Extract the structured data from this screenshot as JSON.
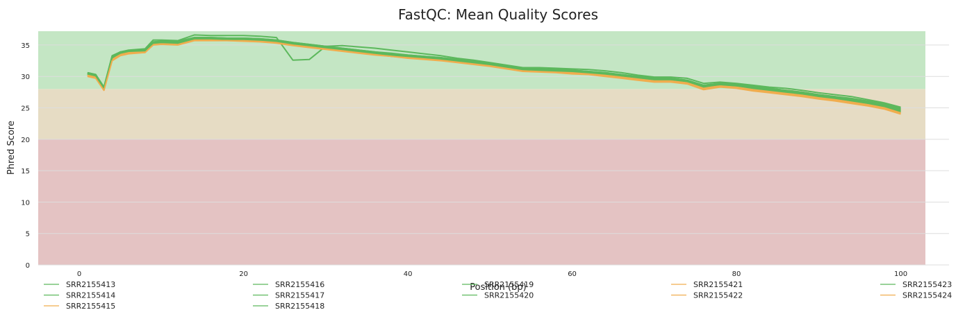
{
  "chart_data": {
    "type": "line",
    "title": "FastQC: Mean Quality Scores",
    "xlabel": "Position (bp)",
    "ylabel": "Phred Score",
    "xlim": [
      -5,
      103
    ],
    "ylim": [
      0,
      37.2
    ],
    "xticks": [
      0,
      20,
      40,
      60,
      80,
      100
    ],
    "yticks": [
      0,
      5,
      10,
      15,
      20,
      25,
      30,
      35
    ],
    "grid": "horizontal",
    "legend_position": "bottom",
    "bands": [
      {
        "from": 0,
        "to": 20,
        "color": "#e4c3c3"
      },
      {
        "from": 20,
        "to": 28,
        "color": "#e6dcc4"
      },
      {
        "from": 28,
        "to": 37.2,
        "color": "#c4e6c4"
      }
    ],
    "x": [
      1,
      2,
      3,
      4,
      5,
      6,
      8,
      9,
      10,
      12,
      14,
      16,
      18,
      20,
      22,
      24,
      26,
      28,
      30,
      32,
      34,
      36,
      38,
      40,
      42,
      44,
      46,
      48,
      50,
      52,
      54,
      56,
      58,
      60,
      62,
      64,
      66,
      68,
      70,
      72,
      74,
      76,
      78,
      80,
      82,
      84,
      86,
      88,
      90,
      92,
      94,
      96,
      98,
      100
    ],
    "series": [
      {
        "name": "SRR2155413",
        "color": "#5cb85c",
        "values": [
          30.6,
          30.3,
          28.3,
          33.3,
          33.9,
          34.2,
          34.4,
          35.8,
          35.8,
          35.7,
          36.6,
          36.5,
          36.5,
          36.5,
          36.4,
          36.2,
          32.6,
          32.7,
          34.8,
          34.9,
          34.7,
          34.5,
          34.2,
          33.9,
          33.6,
          33.3,
          32.9,
          32.6,
          32.2,
          31.8,
          31.4,
          31.4,
          31.3,
          31.2,
          31.1,
          30.9,
          30.6,
          30.2,
          29.9,
          29.9,
          29.7,
          28.9,
          29.1,
          28.9,
          28.6,
          28.3,
          28.1,
          27.8,
          27.4,
          27.1,
          26.8,
          26.3,
          25.8,
          25.1
        ]
      },
      {
        "name": "SRR2155414",
        "color": "#5cb85c",
        "values": [
          30.6,
          30.3,
          28.2,
          33.2,
          33.9,
          34.1,
          34.2,
          35.5,
          35.6,
          35.6,
          36.2,
          36.2,
          36.1,
          36.1,
          36.0,
          35.8,
          35.4,
          35.1,
          34.8,
          34.5,
          34.2,
          33.9,
          33.7,
          33.4,
          33.2,
          33.0,
          32.7,
          32.4,
          32.1,
          31.7,
          31.3,
          31.2,
          31.1,
          31.0,
          30.8,
          30.6,
          30.3,
          30.0,
          29.7,
          29.7,
          29.4,
          28.6,
          28.9,
          28.7,
          28.4,
          28.1,
          27.8,
          27.5,
          27.1,
          26.8,
          26.5,
          26.1,
          25.6,
          24.9
        ]
      },
      {
        "name": "SRR2155415",
        "color": "#f0ad4e",
        "values": [
          30.2,
          29.9,
          27.9,
          32.7,
          33.5,
          33.8,
          34.0,
          35.2,
          35.3,
          35.2,
          35.9,
          35.9,
          35.9,
          35.8,
          35.7,
          35.5,
          35.1,
          34.8,
          34.5,
          34.2,
          33.9,
          33.6,
          33.4,
          33.1,
          32.9,
          32.7,
          32.4,
          32.1,
          31.8,
          31.4,
          31.0,
          30.9,
          30.8,
          30.6,
          30.5,
          30.2,
          29.9,
          29.6,
          29.3,
          29.3,
          29.0,
          28.1,
          28.5,
          28.3,
          27.9,
          27.6,
          27.3,
          27.0,
          26.6,
          26.3,
          25.9,
          25.5,
          25.0,
          24.2
        ]
      },
      {
        "name": "SRR2155416",
        "color": "#5cb85c",
        "values": [
          30.5,
          30.2,
          28.1,
          33.1,
          33.8,
          34.0,
          34.1,
          35.3,
          35.4,
          35.3,
          36.0,
          36.0,
          36.0,
          35.9,
          35.8,
          35.6,
          35.2,
          34.9,
          34.6,
          34.3,
          34.0,
          33.7,
          33.4,
          33.2,
          33.0,
          32.8,
          32.5,
          32.2,
          31.9,
          31.5,
          31.1,
          31.0,
          30.9,
          30.7,
          30.6,
          30.3,
          30.0,
          29.7,
          29.4,
          29.4,
          29.1,
          28.3,
          28.6,
          28.4,
          28.1,
          27.8,
          27.5,
          27.2,
          26.8,
          26.5,
          26.1,
          25.7,
          25.2,
          24.5
        ]
      },
      {
        "name": "SRR2155417",
        "color": "#5cb85c",
        "values": [
          30.4,
          30.1,
          28.1,
          33.0,
          33.7,
          33.9,
          34.1,
          35.3,
          35.3,
          35.3,
          35.9,
          35.9,
          35.9,
          35.8,
          35.7,
          35.5,
          35.1,
          34.8,
          34.5,
          34.2,
          33.9,
          33.6,
          33.3,
          33.1,
          32.9,
          32.7,
          32.4,
          32.1,
          31.8,
          31.4,
          31.0,
          30.9,
          30.8,
          30.6,
          30.5,
          30.2,
          29.9,
          29.6,
          29.3,
          29.3,
          29.0,
          28.2,
          28.5,
          28.3,
          28.0,
          27.7,
          27.4,
          27.1,
          26.7,
          26.4,
          26.0,
          25.6,
          25.1,
          24.4
        ]
      },
      {
        "name": "SRR2155418",
        "color": "#5cb85c",
        "values": [
          30.3,
          30.0,
          28.0,
          32.9,
          33.6,
          33.9,
          34.0,
          35.2,
          35.2,
          35.2,
          35.8,
          35.8,
          35.8,
          35.7,
          35.6,
          35.4,
          35.0,
          34.7,
          34.4,
          34.1,
          33.8,
          33.5,
          33.2,
          33.0,
          32.8,
          32.6,
          32.3,
          32.0,
          31.7,
          31.3,
          30.9,
          30.8,
          30.7,
          30.5,
          30.4,
          30.1,
          29.8,
          29.5,
          29.2,
          29.2,
          28.9,
          28.1,
          28.4,
          28.2,
          27.9,
          27.6,
          27.3,
          27.0,
          26.6,
          26.3,
          25.9,
          25.5,
          25.0,
          24.3
        ]
      },
      {
        "name": "SRR2155419",
        "color": "#5cb85c",
        "values": [
          30.5,
          30.2,
          28.2,
          33.1,
          33.8,
          34.0,
          34.2,
          35.4,
          35.5,
          35.4,
          36.1,
          36.1,
          36.0,
          36.0,
          35.9,
          35.7,
          35.3,
          35.0,
          34.7,
          34.4,
          34.1,
          33.8,
          33.5,
          33.3,
          33.1,
          32.9,
          32.6,
          32.3,
          32.0,
          31.6,
          31.2,
          31.1,
          31.0,
          30.9,
          30.7,
          30.5,
          30.2,
          29.9,
          29.6,
          29.6,
          29.3,
          28.5,
          28.8,
          28.6,
          28.3,
          28.0,
          27.7,
          27.4,
          27.0,
          26.7,
          26.3,
          25.9,
          25.4,
          24.7
        ]
      },
      {
        "name": "SRR2155420",
        "color": "#5cb85c",
        "values": [
          30.6,
          30.3,
          28.3,
          33.2,
          33.9,
          34.1,
          34.3,
          35.5,
          35.6,
          35.5,
          36.2,
          36.2,
          36.1,
          36.1,
          36.0,
          35.8,
          35.4,
          35.1,
          34.8,
          34.5,
          34.2,
          33.9,
          33.6,
          33.4,
          33.2,
          33.0,
          32.7,
          32.4,
          32.1,
          31.7,
          31.3,
          31.2,
          31.1,
          31.0,
          30.8,
          30.6,
          30.3,
          30.0,
          29.7,
          29.7,
          29.4,
          28.6,
          28.9,
          28.7,
          28.4,
          28.1,
          27.8,
          27.5,
          27.1,
          26.8,
          26.4,
          26.0,
          25.5,
          24.8
        ]
      },
      {
        "name": "SRR2155421",
        "color": "#f0ad4e",
        "values": [
          30.1,
          29.8,
          27.8,
          32.6,
          33.4,
          33.7,
          33.8,
          35.1,
          35.2,
          35.1,
          35.8,
          35.8,
          35.8,
          35.7,
          35.6,
          35.4,
          35.0,
          34.7,
          34.4,
          34.1,
          33.8,
          33.5,
          33.3,
          33.0,
          32.8,
          32.6,
          32.3,
          32.0,
          31.7,
          31.3,
          30.9,
          30.8,
          30.7,
          30.5,
          30.4,
          30.1,
          29.8,
          29.5,
          29.2,
          29.2,
          28.9,
          28.0,
          28.4,
          28.2,
          27.8,
          27.5,
          27.2,
          26.9,
          26.5,
          26.2,
          25.8,
          25.4,
          24.9,
          24.1
        ]
      },
      {
        "name": "SRR2155422",
        "color": "#f0ad4e",
        "values": [
          30.2,
          29.9,
          27.9,
          32.7,
          33.5,
          33.8,
          33.9,
          35.2,
          35.2,
          35.2,
          35.9,
          35.9,
          35.8,
          35.8,
          35.7,
          35.5,
          35.1,
          34.8,
          34.5,
          34.2,
          33.9,
          33.6,
          33.3,
          33.1,
          32.9,
          32.7,
          32.4,
          32.1,
          31.8,
          31.4,
          31.0,
          30.9,
          30.8,
          30.6,
          30.5,
          30.2,
          29.9,
          29.6,
          29.3,
          29.3,
          29.0,
          28.1,
          28.5,
          28.3,
          27.9,
          27.6,
          27.3,
          27.0,
          26.6,
          26.3,
          25.9,
          25.5,
          25.0,
          24.2
        ]
      },
      {
        "name": "SRR2155423",
        "color": "#5cb85c",
        "values": [
          30.4,
          30.1,
          28.1,
          33.0,
          33.7,
          34.0,
          34.1,
          35.3,
          35.4,
          35.3,
          36.0,
          36.0,
          35.9,
          35.9,
          35.8,
          35.6,
          35.2,
          34.9,
          34.6,
          34.3,
          34.0,
          33.7,
          33.4,
          33.2,
          33.0,
          32.8,
          32.5,
          32.2,
          31.9,
          31.5,
          31.1,
          31.0,
          30.9,
          30.8,
          30.6,
          30.4,
          30.1,
          29.8,
          29.5,
          29.5,
          29.2,
          28.4,
          28.7,
          28.5,
          28.2,
          27.9,
          27.6,
          27.3,
          26.9,
          26.6,
          26.2,
          25.8,
          25.3,
          24.6
        ]
      },
      {
        "name": "SRR2155424",
        "color": "#f0ad4e",
        "values": [
          30.0,
          29.7,
          27.8,
          32.5,
          33.3,
          33.6,
          33.8,
          35.0,
          35.1,
          35.0,
          35.7,
          35.7,
          35.7,
          35.6,
          35.5,
          35.3,
          34.9,
          34.6,
          34.3,
          34.0,
          33.7,
          33.4,
          33.2,
          32.9,
          32.7,
          32.5,
          32.2,
          31.9,
          31.6,
          31.2,
          30.8,
          30.7,
          30.6,
          30.4,
          30.3,
          30.0,
          29.7,
          29.4,
          29.1,
          29.1,
          28.8,
          27.9,
          28.3,
          28.1,
          27.7,
          27.4,
          27.1,
          26.8,
          26.4,
          26.1,
          25.7,
          25.3,
          24.8,
          24.0
        ]
      }
    ]
  }
}
